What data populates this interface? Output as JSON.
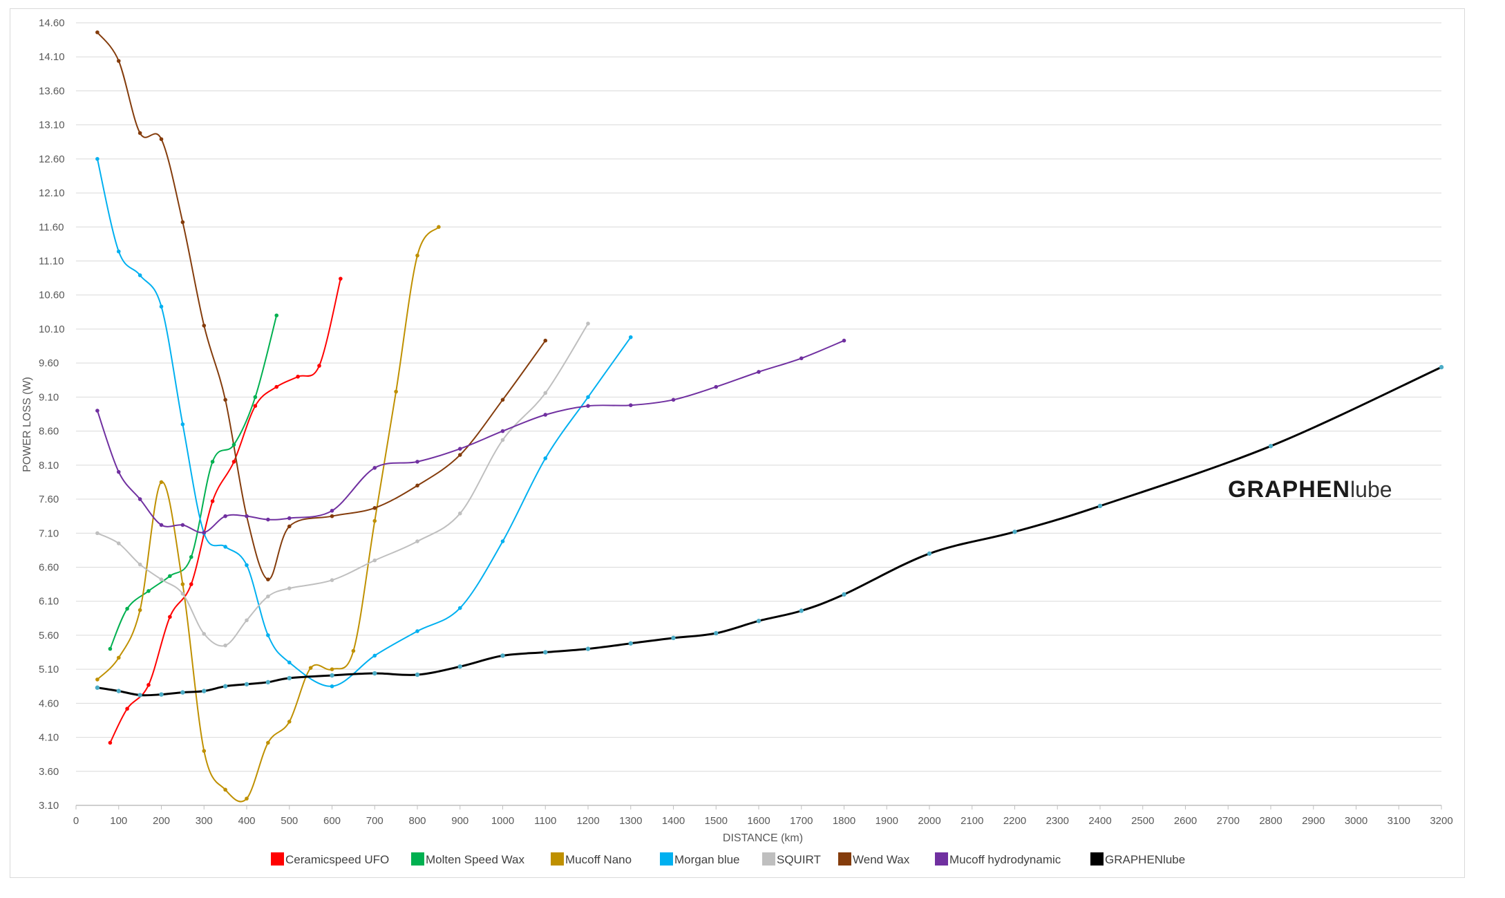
{
  "chart_data": {
    "type": "line",
    "title": "",
    "xlabel": "DISTANCE (km)",
    "ylabel": "POWER LOSS  (W)",
    "xlim": [
      0,
      3200
    ],
    "ylim": [
      3.1,
      14.6
    ],
    "x_ticks": [
      "0",
      "100",
      "200",
      "300",
      "400",
      "500",
      "600",
      "700",
      "800",
      "900",
      "1000",
      "1100",
      "1200",
      "1300",
      "1400",
      "1500",
      "1600",
      "1700",
      "1800",
      "1900",
      "2000",
      "2100",
      "2200",
      "2300",
      "2400",
      "2500",
      "2600",
      "2700",
      "2800",
      "2900",
      "3000",
      "3100",
      "3200"
    ],
    "y_ticks": [
      "3.10",
      "3.60",
      "4.10",
      "4.60",
      "5.10",
      "5.60",
      "6.10",
      "6.60",
      "7.10",
      "7.60",
      "8.10",
      "8.60",
      "9.10",
      "9.60",
      "10.10",
      "10.60",
      "11.10",
      "11.60",
      "12.10",
      "12.60",
      "13.10",
      "13.60",
      "14.10",
      "14.60"
    ],
    "grid": true,
    "legend_position": "bottom",
    "watermark": {
      "bold": "GRAPHEN",
      "light": "lube"
    },
    "series": [
      {
        "name": "Ceramicspeed UFO",
        "color": "#ff0000",
        "points": [
          [
            80,
            4.02
          ],
          [
            120,
            4.52
          ],
          [
            170,
            4.87
          ],
          [
            220,
            5.87
          ],
          [
            270,
            6.35
          ],
          [
            320,
            7.57
          ],
          [
            370,
            8.15
          ],
          [
            420,
            8.97
          ],
          [
            470,
            9.25
          ],
          [
            520,
            9.4
          ],
          [
            570,
            9.56
          ],
          [
            620,
            10.84
          ]
        ]
      },
      {
        "name": "Molten Speed Wax",
        "color": "#00b050",
        "points": [
          [
            80,
            5.4
          ],
          [
            120,
            5.99
          ],
          [
            170,
            6.25
          ],
          [
            220,
            6.47
          ],
          [
            270,
            6.75
          ],
          [
            320,
            8.15
          ],
          [
            370,
            8.4
          ],
          [
            420,
            9.1
          ],
          [
            470,
            10.3
          ]
        ]
      },
      {
        "name": "Mucoff Nano",
        "color": "#bf9000",
        "points": [
          [
            50,
            4.95
          ],
          [
            100,
            5.27
          ],
          [
            150,
            5.97
          ],
          [
            200,
            7.85
          ],
          [
            250,
            6.35
          ],
          [
            300,
            3.9
          ],
          [
            350,
            3.33
          ],
          [
            400,
            3.2
          ],
          [
            450,
            4.02
          ],
          [
            500,
            4.33
          ],
          [
            550,
            5.12
          ],
          [
            600,
            5.1
          ],
          [
            650,
            5.37
          ],
          [
            700,
            7.28
          ],
          [
            750,
            9.18
          ],
          [
            800,
            11.18
          ],
          [
            850,
            11.6
          ]
        ]
      },
      {
        "name": "Morgan blue",
        "color": "#00b0f0",
        "points": [
          [
            50,
            12.6
          ],
          [
            100,
            11.24
          ],
          [
            150,
            10.89
          ],
          [
            200,
            10.43
          ],
          [
            250,
            8.7
          ],
          [
            300,
            7.1
          ],
          [
            350,
            6.9
          ],
          [
            400,
            6.63
          ],
          [
            450,
            5.6
          ],
          [
            500,
            5.2
          ],
          [
            600,
            4.85
          ],
          [
            700,
            5.3
          ],
          [
            800,
            5.66
          ],
          [
            900,
            6.0
          ],
          [
            1000,
            6.98
          ],
          [
            1100,
            8.2
          ],
          [
            1200,
            9.1
          ],
          [
            1300,
            9.98
          ]
        ]
      },
      {
        "name": "SQUIRT",
        "color": "#bfbfbf",
        "points": [
          [
            50,
            7.1
          ],
          [
            100,
            6.95
          ],
          [
            150,
            6.64
          ],
          [
            200,
            6.42
          ],
          [
            250,
            6.21
          ],
          [
            300,
            5.62
          ],
          [
            350,
            5.45
          ],
          [
            400,
            5.82
          ],
          [
            450,
            6.17
          ],
          [
            500,
            6.29
          ],
          [
            600,
            6.41
          ],
          [
            700,
            6.7
          ],
          [
            800,
            6.98
          ],
          [
            900,
            7.39
          ],
          [
            1000,
            8.47
          ],
          [
            1100,
            9.16
          ],
          [
            1200,
            10.18
          ]
        ]
      },
      {
        "name": "Wend Wax",
        "color": "#843c0c",
        "points": [
          [
            50,
            14.46
          ],
          [
            100,
            14.04
          ],
          [
            150,
            12.98
          ],
          [
            200,
            12.89
          ],
          [
            250,
            11.67
          ],
          [
            300,
            10.15
          ],
          [
            350,
            9.06
          ],
          [
            400,
            7.35
          ],
          [
            450,
            6.42
          ],
          [
            500,
            7.2
          ],
          [
            600,
            7.35
          ],
          [
            700,
            7.47
          ],
          [
            800,
            7.8
          ],
          [
            900,
            8.25
          ],
          [
            1000,
            9.06
          ],
          [
            1100,
            9.93
          ]
        ]
      },
      {
        "name": "Mucoff hydrodynamic",
        "color": "#7030a0",
        "points": [
          [
            50,
            8.9
          ],
          [
            100,
            8.0
          ],
          [
            150,
            7.6
          ],
          [
            200,
            7.22
          ],
          [
            250,
            7.22
          ],
          [
            300,
            7.11
          ],
          [
            350,
            7.35
          ],
          [
            400,
            7.35
          ],
          [
            450,
            7.3
          ],
          [
            500,
            7.32
          ],
          [
            600,
            7.43
          ],
          [
            700,
            8.06
          ],
          [
            800,
            8.15
          ],
          [
            900,
            8.34
          ],
          [
            1000,
            8.6
          ],
          [
            1100,
            8.84
          ],
          [
            1200,
            8.97
          ],
          [
            1300,
            8.98
          ],
          [
            1400,
            9.06
          ],
          [
            1500,
            9.25
          ],
          [
            1600,
            9.47
          ],
          [
            1700,
            9.67
          ],
          [
            1800,
            9.93
          ]
        ]
      },
      {
        "name": "GRAPHENlube",
        "color": "#000000",
        "points": [
          [
            50,
            4.83
          ],
          [
            100,
            4.78
          ],
          [
            150,
            4.72
          ],
          [
            200,
            4.73
          ],
          [
            250,
            4.76
          ],
          [
            300,
            4.78
          ],
          [
            350,
            4.85
          ],
          [
            400,
            4.88
          ],
          [
            450,
            4.91
          ],
          [
            500,
            4.97
          ],
          [
            600,
            5.01
          ],
          [
            700,
            5.04
          ],
          [
            800,
            5.02
          ],
          [
            900,
            5.14
          ],
          [
            1000,
            5.3
          ],
          [
            1100,
            5.35
          ],
          [
            1200,
            5.4
          ],
          [
            1300,
            5.48
          ],
          [
            1400,
            5.56
          ],
          [
            1500,
            5.63
          ],
          [
            1600,
            5.81
          ],
          [
            1700,
            5.96
          ],
          [
            1800,
            6.2
          ],
          [
            2000,
            6.8
          ],
          [
            2200,
            7.12
          ],
          [
            2400,
            7.5
          ],
          [
            2800,
            8.38
          ],
          [
            3200,
            9.54
          ]
        ]
      }
    ]
  }
}
